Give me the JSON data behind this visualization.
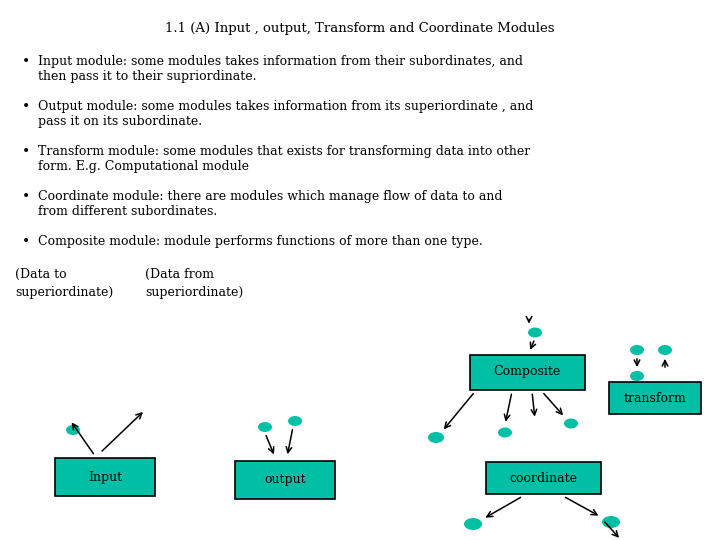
{
  "title": "1.1 (A) Input , output, Transform and Coordinate Modules",
  "bullet1_l1": "Input module: some modules takes information from their subordinates, and",
  "bullet1_l2": "then pass it to their supriordinate.",
  "bullet2_l1": "Output module: some modules takes information from its superiordinate , and",
  "bullet2_l2": "pass it on its subordinate.",
  "bullet3_l1": "Transform module: some modules that exists for transforming data into other",
  "bullet3_l2": "form. E.g. Computational module",
  "bullet4_l1": "Coordinate module: there are modules which manage flow of data to and",
  "bullet4_l2": "from different subordinates.",
  "bullet5_l1": "Composite module: module performs functions of more than one type.",
  "label1a": "(Data to",
  "label1b": "superiordinate)",
  "label2a": "(Data from",
  "label2b": "superiordinate)",
  "box_color": "#00BFA5",
  "bg_color": "#FFFFFF",
  "font_color": "#000000",
  "title_fontsize": 9.5,
  "text_fontsize": 9.0
}
